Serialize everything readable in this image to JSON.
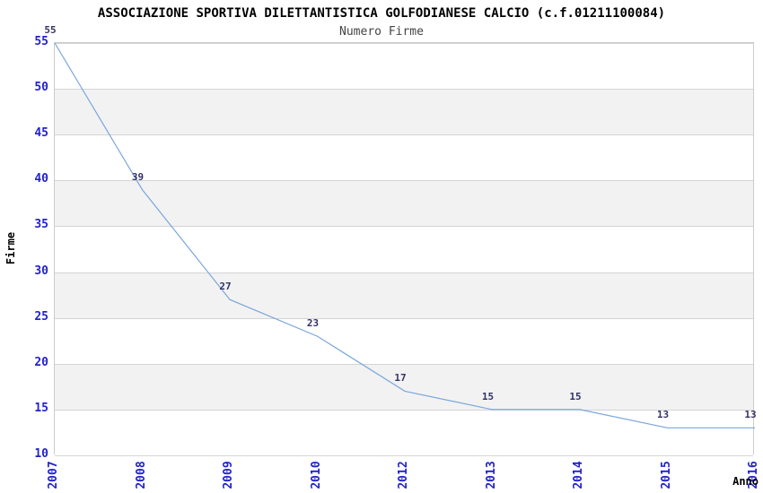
{
  "header": {
    "title": "ASSOCIAZIONE SPORTIVA DILETTANTISTICA GOLFODIANESE CALCIO (c.f.01211100084)",
    "subtitle": "Numero Firme"
  },
  "chart_data": {
    "type": "line",
    "title": "ASSOCIAZIONE SPORTIVA DILETTANTISTICA GOLFODIANESE CALCIO (c.f.01211100084)",
    "subtitle": "Numero Firme",
    "categories": [
      "2007",
      "2008",
      "2009",
      "2010",
      "2012",
      "2013",
      "2014",
      "2015",
      "2016"
    ],
    "values": [
      55,
      39,
      27,
      23,
      17,
      15,
      15,
      13,
      13
    ],
    "data_labels": [
      "55",
      "39",
      "27",
      "23",
      "17",
      "15",
      "15",
      "13",
      "13"
    ],
    "xlabel": "Anno",
    "ylabel": "Firme",
    "ylim": [
      10,
      55
    ],
    "yticks": [
      10,
      15,
      20,
      25,
      30,
      35,
      40,
      45,
      50,
      55
    ],
    "grid": "horizontal-on",
    "banding": "alternating gray bands between gridlines: 50-45, 40-35, 30-25, 20-15",
    "legend_position": "none",
    "colors": {
      "line": "#7aa6dc",
      "tick_label": "#2222cc",
      "data_label": "#333366",
      "band_gray": "#f2f2f2",
      "grid": "#d4d4d4",
      "plot_border": "#cccccc",
      "title": "#000000",
      "subtitle": "#444444",
      "axis_title": "#000000",
      "background": "#ffffff"
    }
  }
}
